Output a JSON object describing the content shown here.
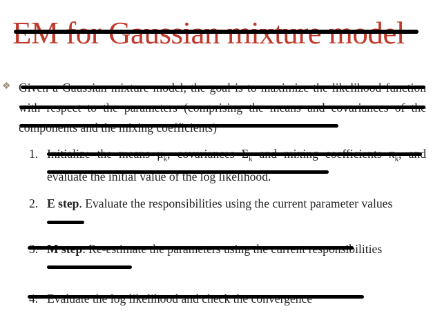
{
  "colors": {
    "title": "#c0392b",
    "text": "#222222",
    "strike": "#000000",
    "background": "#ffffff"
  },
  "slide": {
    "title": "EM for Gaussian mixture model",
    "bullet_icon": "diamond-cross-bullet-icon",
    "bullet_glyph": "❖",
    "intro": "Given a Gaussian mixture model, the goal is to maximize the likelihood function with respect to the parameters (comprising the means and covariances of the components and the mixing coefficients)",
    "steps": [
      {
        "number": "1.",
        "bold": "",
        "text": "Initialize the means μ",
        "sub1": "k",
        "mid1": ", covariances Σ",
        "sub2": "k",
        "mid2": " and mixing coefficients π",
        "sub3": "k",
        "tail": ", and evaluate the initial value of the log likelihood."
      },
      {
        "number": "2.",
        "bold": "E step",
        "text": ". Evaluate the responsibilities using the current parameter values"
      },
      {
        "number": "3.",
        "bold": "M step",
        "text": ". Re-estimate the parameters using the current responsibilities"
      },
      {
        "number": "4.",
        "bold": "",
        "text": "Evaluate the log likelihood and check the convergence"
      }
    ]
  }
}
